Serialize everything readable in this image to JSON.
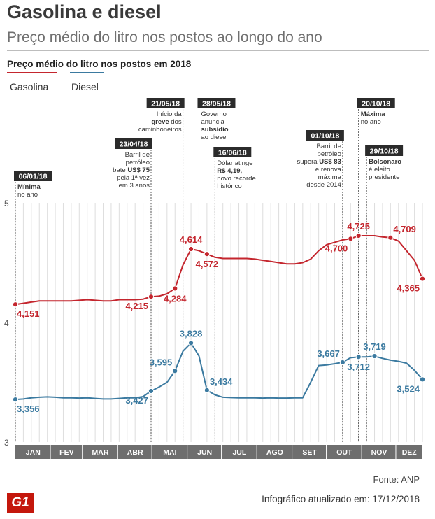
{
  "header": {
    "title": "Gasolina e diesel",
    "subtitle": "Preço médio do litro nos postos ao longo do ano"
  },
  "footer": {
    "source": "Fonte: ANP",
    "logo": "G1",
    "updated": "Infográfico atualizado em: 17/12/2018"
  },
  "colors": {
    "gasolina": "#c4262e",
    "diesel": "#3b7aa0",
    "grid": "#dedede",
    "axis_bar": "#6e6e6e"
  },
  "chart_data": {
    "type": "line",
    "title": "Preço médio do litro nos postos em 2018",
    "ylim": [
      3,
      5
    ],
    "yticks": [
      "3",
      "4",
      "5"
    ],
    "months": [
      "JAN",
      "FEV",
      "MAR",
      "ABR",
      "MAI",
      "JUN",
      "JUL",
      "AGO",
      "SET",
      "OUT",
      "NOV",
      "DEZ"
    ],
    "xlim": [
      0,
      51
    ],
    "series": [
      {
        "name": "Gasolina",
        "color": "#c4262e",
        "points": [
          [
            0,
            4.151
          ],
          [
            1,
            4.16
          ],
          [
            2,
            4.17
          ],
          [
            3,
            4.18
          ],
          [
            4,
            4.18
          ],
          [
            5,
            4.18
          ],
          [
            6,
            4.18
          ],
          [
            7,
            4.18
          ],
          [
            8,
            4.185
          ],
          [
            9,
            4.19
          ],
          [
            10,
            4.185
          ],
          [
            11,
            4.18
          ],
          [
            12,
            4.18
          ],
          [
            13,
            4.19
          ],
          [
            14,
            4.19
          ],
          [
            15,
            4.19
          ],
          [
            16,
            4.195
          ],
          [
            17,
            4.215
          ],
          [
            18,
            4.22
          ],
          [
            19,
            4.24
          ],
          [
            20,
            4.284
          ],
          [
            21,
            4.48
          ],
          [
            22,
            4.614
          ],
          [
            23,
            4.6
          ],
          [
            24,
            4.572
          ],
          [
            25,
            4.545
          ],
          [
            26,
            4.535
          ],
          [
            27,
            4.535
          ],
          [
            28,
            4.535
          ],
          [
            29,
            4.535
          ],
          [
            30,
            4.53
          ],
          [
            31,
            4.52
          ],
          [
            32,
            4.51
          ],
          [
            33,
            4.5
          ],
          [
            34,
            4.49
          ],
          [
            35,
            4.49
          ],
          [
            36,
            4.5
          ],
          [
            37,
            4.53
          ],
          [
            38,
            4.6
          ],
          [
            39,
            4.65
          ],
          [
            40,
            4.67
          ],
          [
            41,
            4.69
          ],
          [
            42,
            4.7
          ],
          [
            43,
            4.725
          ],
          [
            44,
            4.725
          ],
          [
            45,
            4.725
          ],
          [
            46,
            4.715
          ],
          [
            47,
            4.709
          ],
          [
            48,
            4.68
          ],
          [
            49,
            4.6
          ],
          [
            50,
            4.52
          ],
          [
            51,
            4.365
          ]
        ]
      },
      {
        "name": "Diesel",
        "color": "#3b7aa0",
        "points": [
          [
            0,
            3.356
          ],
          [
            1,
            3.36
          ],
          [
            2,
            3.37
          ],
          [
            3,
            3.375
          ],
          [
            4,
            3.378
          ],
          [
            5,
            3.375
          ],
          [
            6,
            3.37
          ],
          [
            7,
            3.37
          ],
          [
            8,
            3.368
          ],
          [
            9,
            3.37
          ],
          [
            10,
            3.365
          ],
          [
            11,
            3.36
          ],
          [
            12,
            3.36
          ],
          [
            13,
            3.365
          ],
          [
            14,
            3.37
          ],
          [
            15,
            3.37
          ],
          [
            16,
            3.38
          ],
          [
            17,
            3.427
          ],
          [
            18,
            3.46
          ],
          [
            19,
            3.5
          ],
          [
            20,
            3.595
          ],
          [
            21,
            3.76
          ],
          [
            22,
            3.828
          ],
          [
            23,
            3.72
          ],
          [
            24,
            3.434
          ],
          [
            25,
            3.395
          ],
          [
            26,
            3.375
          ],
          [
            27,
            3.372
          ],
          [
            28,
            3.37
          ],
          [
            29,
            3.37
          ],
          [
            30,
            3.37
          ],
          [
            31,
            3.368
          ],
          [
            32,
            3.37
          ],
          [
            33,
            3.368
          ],
          [
            34,
            3.368
          ],
          [
            35,
            3.37
          ],
          [
            36,
            3.37
          ],
          [
            37,
            3.5
          ],
          [
            38,
            3.64
          ],
          [
            39,
            3.645
          ],
          [
            40,
            3.655
          ],
          [
            41,
            3.667
          ],
          [
            42,
            3.705
          ],
          [
            43,
            3.712
          ],
          [
            44,
            3.712
          ],
          [
            45,
            3.719
          ],
          [
            46,
            3.7
          ],
          [
            47,
            3.685
          ],
          [
            48,
            3.675
          ],
          [
            49,
            3.66
          ],
          [
            50,
            3.6
          ],
          [
            51,
            3.524
          ]
        ]
      }
    ],
    "value_labels": [
      {
        "series": "Gasolina",
        "week": 0,
        "text": "4,151",
        "pos": "below-right"
      },
      {
        "series": "Gasolina",
        "week": 17,
        "text": "4,215",
        "pos": "below-left"
      },
      {
        "series": "Gasolina",
        "week": 20,
        "text": "4,284",
        "pos": "below"
      },
      {
        "series": "Gasolina",
        "week": 22,
        "text": "4,614",
        "pos": "above"
      },
      {
        "series": "Gasolina",
        "week": 24,
        "text": "4,572",
        "pos": "below"
      },
      {
        "series": "Gasolina",
        "week": 43,
        "text": "4,725",
        "pos": "above"
      },
      {
        "series": "Gasolina",
        "week": 42,
        "text": "4,700",
        "pos": "below-left"
      },
      {
        "series": "Gasolina",
        "week": 47,
        "text": "4,709",
        "pos": "above-right"
      },
      {
        "series": "Gasolina",
        "week": 51,
        "text": "4,365",
        "pos": "below-left"
      },
      {
        "series": "Diesel",
        "week": 0,
        "text": "3,356",
        "pos": "below-right"
      },
      {
        "series": "Diesel",
        "week": 17,
        "text": "3,427",
        "pos": "below-left"
      },
      {
        "series": "Diesel",
        "week": 20,
        "text": "3,595",
        "pos": "above-left"
      },
      {
        "series": "Diesel",
        "week": 22,
        "text": "3,828",
        "pos": "above"
      },
      {
        "series": "Diesel",
        "week": 24,
        "text": "3,434",
        "pos": "above-right"
      },
      {
        "series": "Diesel",
        "week": 41,
        "text": "3,667",
        "pos": "above-left"
      },
      {
        "series": "Diesel",
        "week": 43,
        "text": "3,712",
        "pos": "below"
      },
      {
        "series": "Diesel",
        "week": 45,
        "text": "3,719",
        "pos": "above"
      },
      {
        "series": "Diesel",
        "week": 51,
        "text": "3,524",
        "pos": "below-left"
      }
    ],
    "annotations": [
      {
        "week": 0,
        "date": "06/01/18",
        "lines": [
          {
            "t": "Mínima",
            "b": true
          },
          {
            "t": "no ano",
            "b": false
          }
        ],
        "align": "left"
      },
      {
        "week": 17,
        "date": "23/04/18",
        "lines": [
          {
            "t": "Barril de",
            "b": false
          },
          {
            "t": "petróleo",
            "b": false
          },
          {
            "t": "bate US$ 75",
            "b": false,
            "bold_part": "US$ 75"
          },
          {
            "t": "pela 1ª vez",
            "b": false
          },
          {
            "t": "em 3 anos",
            "b": false
          }
        ],
        "align": "right"
      },
      {
        "week": 21,
        "date": "21/05/18",
        "lines": [
          {
            "t": "Início da",
            "b": false
          },
          {
            "t": "greve dos",
            "b": false,
            "bold_part": "greve"
          },
          {
            "t": "caminhoneiros",
            "b": false
          }
        ],
        "align": "right"
      },
      {
        "week": 23,
        "date": "28/05/18",
        "lines": [
          {
            "t": "Governo",
            "b": false
          },
          {
            "t": "anuncia",
            "b": false
          },
          {
            "t": "subsídio",
            "b": true
          },
          {
            "t": "ao diesel",
            "b": false
          }
        ],
        "align": "left"
      },
      {
        "week": 25,
        "date": "16/06/18",
        "lines": [
          {
            "t": "Dólar atinge",
            "b": false
          },
          {
            "t": "R$ 4,19,",
            "b": true
          },
          {
            "t": "novo recorde",
            "b": false
          },
          {
            "t": "histórico",
            "b": false
          }
        ],
        "align": "left"
      },
      {
        "week": 41,
        "date": "01/10/18",
        "lines": [
          {
            "t": "Barril de",
            "b": false
          },
          {
            "t": "petróleo",
            "b": false
          },
          {
            "t": "supera US$ 83",
            "b": false,
            "bold_part": "US$ 83"
          },
          {
            "t": "e renova",
            "b": false
          },
          {
            "t": "máxima",
            "b": false
          },
          {
            "t": "desde 2014",
            "b": false
          }
        ],
        "align": "right"
      },
      {
        "week": 43,
        "date": "20/10/18",
        "lines": [
          {
            "t": "Máxima",
            "b": true
          },
          {
            "t": "no ano",
            "b": false
          }
        ],
        "align": "left"
      },
      {
        "week": 44,
        "date": "29/10/18",
        "lines": [
          {
            "t": "Bolsonaro",
            "b": true
          },
          {
            "t": "é eleito",
            "b": false
          },
          {
            "t": "presidente",
            "b": false
          }
        ],
        "align": "left"
      }
    ]
  }
}
